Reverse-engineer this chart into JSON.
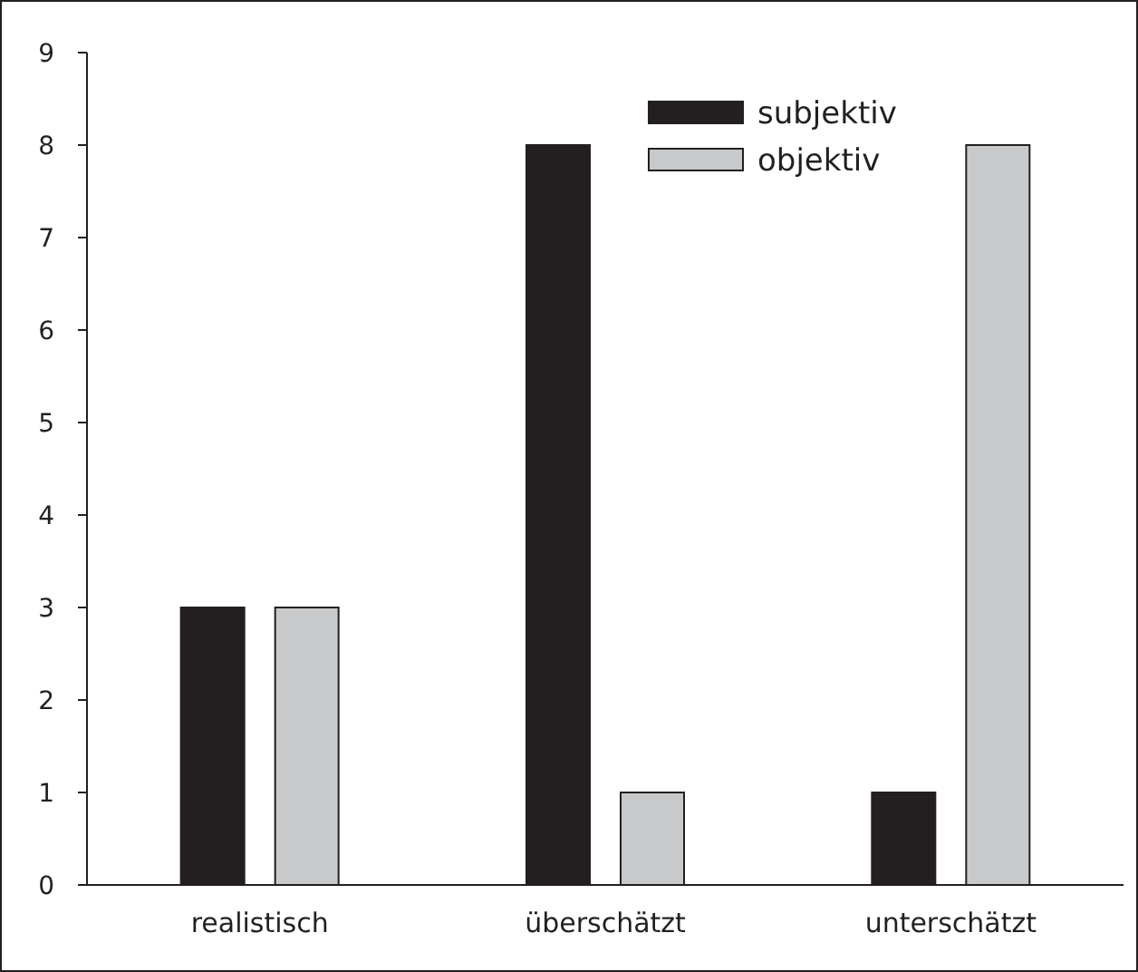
{
  "chart_data": {
    "type": "bar",
    "categories": [
      "realistisch",
      "überschätzt",
      "unterschätzt"
    ],
    "series": [
      {
        "name": "subjektiv",
        "color": "#231f20",
        "values": [
          3,
          8,
          1
        ]
      },
      {
        "name": "objektiv",
        "color": "#c8c9cb",
        "values": [
          3,
          1,
          8
        ]
      }
    ],
    "ylim": [
      0,
      9
    ],
    "yticks": [
      0,
      1,
      2,
      3,
      4,
      5,
      6,
      7,
      8,
      9
    ],
    "grid": false,
    "legend": "top right"
  }
}
